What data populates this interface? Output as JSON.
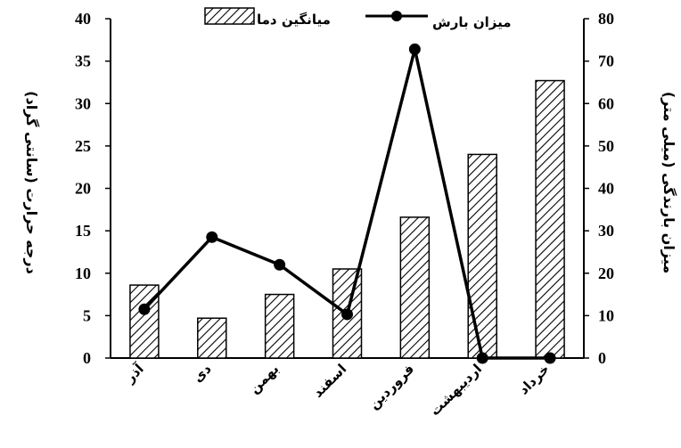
{
  "chart_data": {
    "type": "bar",
    "categories": [
      "آذر",
      "دی",
      "بهمن",
      "اسفند",
      "فروردین",
      "اردیبهشت",
      "خرداد"
    ],
    "series": [
      {
        "name": "میانگین دما",
        "type": "bar",
        "axis": "left",
        "values": [
          8.6,
          4.7,
          7.5,
          10.5,
          16.6,
          24.0,
          32.7
        ]
      },
      {
        "name": "میزان بارش",
        "type": "line",
        "axis": "right",
        "values": [
          11.5,
          28.5,
          22.0,
          10.3,
          72.8,
          0,
          0
        ]
      }
    ],
    "ylabel": "درجه حرارت (سانتی گراد)",
    "y2label": "میزان بارندگی (میلی متر)",
    "ylim": [
      0,
      40
    ],
    "y2lim": [
      0,
      80
    ],
    "yticks": [
      "0",
      "5",
      "10",
      "15",
      "20",
      "25",
      "30",
      "35",
      "40"
    ],
    "y2ticks": [
      "0",
      "10",
      "20",
      "30",
      "40",
      "50",
      "60",
      "70",
      "80"
    ],
    "legend_position": "top",
    "grid": false,
    "colors": {
      "bar_fill": "#ffffff",
      "hatch": "#000000",
      "line": "#000000"
    }
  }
}
